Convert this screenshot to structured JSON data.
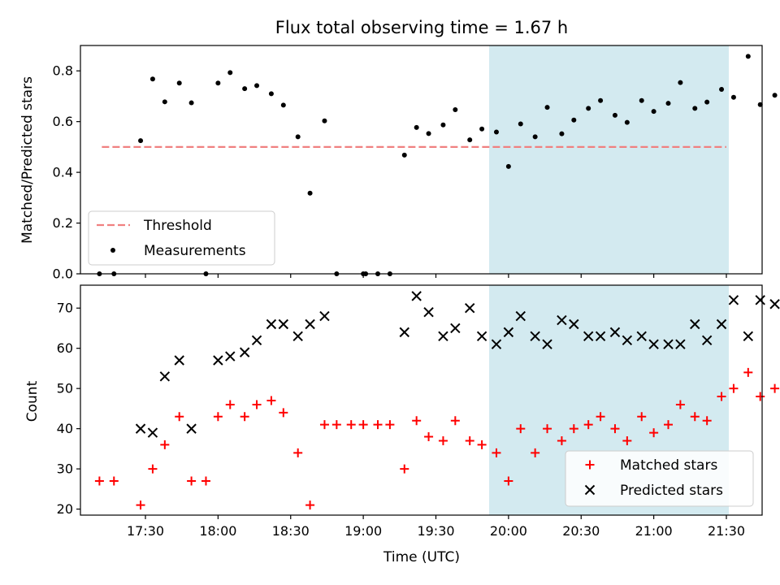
{
  "chart_data": [
    {
      "type": "scatter",
      "title": "Flux total observing time = 1.67 h",
      "ylabel": "Matched/Predicted stars",
      "ylim": [
        0,
        0.9
      ],
      "yticks": [
        "0.0",
        "0.2",
        "0.4",
        "0.6",
        "0.8"
      ],
      "grid": false,
      "legend_placement": "lower-left",
      "shaded_region": {
        "from": "19:52",
        "to": "21:31",
        "color": "#d3eaf0"
      },
      "threshold": {
        "name": "Threshold",
        "value": 0.5,
        "x_from": "17:12",
        "x_to": "21:30",
        "color": "#f08080"
      },
      "series": [
        {
          "name": "Measurements",
          "color": "#000000",
          "marker": "dot",
          "points": [
            [
              "17:11",
              0.0
            ],
            [
              "17:17",
              0.0
            ],
            [
              "17:28",
              0.525
            ],
            [
              "17:33",
              0.768
            ],
            [
              "17:38",
              0.678
            ],
            [
              "17:44",
              0.752
            ],
            [
              "17:49",
              0.674
            ],
            [
              "17:55",
              0.0
            ],
            [
              "18:00",
              0.752
            ],
            [
              "18:05",
              0.793
            ],
            [
              "18:11",
              0.73
            ],
            [
              "18:16",
              0.742
            ],
            [
              "18:22",
              0.71
            ],
            [
              "18:27",
              0.665
            ],
            [
              "18:33",
              0.54
            ],
            [
              "18:38",
              0.318
            ],
            [
              "18:44",
              0.603
            ],
            [
              "18:49",
              0.0
            ],
            [
              "19:00",
              0.0
            ],
            [
              "19:01",
              0.0
            ],
            [
              "19:06",
              0.0
            ],
            [
              "19:11",
              0.0
            ],
            [
              "19:17",
              0.468
            ],
            [
              "19:22",
              0.577
            ],
            [
              "19:27",
              0.553
            ],
            [
              "19:33",
              0.587
            ],
            [
              "19:38",
              0.647
            ],
            [
              "19:44",
              0.528
            ],
            [
              "19:49",
              0.571
            ],
            [
              "19:55",
              0.559
            ],
            [
              "20:00",
              0.423
            ],
            [
              "20:05",
              0.591
            ],
            [
              "20:11",
              0.54
            ],
            [
              "20:16",
              0.656
            ],
            [
              "20:22",
              0.552
            ],
            [
              "20:27",
              0.606
            ],
            [
              "20:33",
              0.652
            ],
            [
              "20:38",
              0.683
            ],
            [
              "20:44",
              0.625
            ],
            [
              "20:49",
              0.597
            ],
            [
              "20:55",
              0.683
            ],
            [
              "21:00",
              0.64
            ],
            [
              "21:06",
              0.672
            ],
            [
              "21:11",
              0.754
            ],
            [
              "21:17",
              0.652
            ],
            [
              "21:22",
              0.677
            ],
            [
              "21:28",
              0.727
            ],
            [
              "21:33",
              0.696
            ],
            [
              "21:39",
              0.857
            ],
            [
              "21:44",
              0.667
            ],
            [
              "21:50",
              0.704
            ],
            [
              "21:55",
              0.714
            ]
          ]
        }
      ]
    },
    {
      "type": "scatter",
      "xlabel": "Time (UTC)",
      "ylabel": "Count",
      "ylim": [
        18.5,
        75.7
      ],
      "yticks": [
        "20",
        "30",
        "40",
        "50",
        "60",
        "70"
      ],
      "xticks": [
        "17:30",
        "18:00",
        "18:30",
        "19:00",
        "19:30",
        "20:00",
        "20:30",
        "21:00",
        "21:30"
      ],
      "grid": false,
      "legend_placement": "lower-right",
      "shaded_region": {
        "from": "19:52",
        "to": "21:31",
        "color": "#d3eaf0"
      },
      "series": [
        {
          "name": "Matched stars",
          "color": "#ff0000",
          "marker": "plus",
          "points": [
            [
              "17:11",
              27
            ],
            [
              "17:17",
              27
            ],
            [
              "17:28",
              21
            ],
            [
              "17:33",
              30
            ],
            [
              "17:38",
              36
            ],
            [
              "17:44",
              43
            ],
            [
              "17:49",
              27
            ],
            [
              "17:55",
              27
            ],
            [
              "18:00",
              43
            ],
            [
              "18:05",
              46
            ],
            [
              "18:11",
              43
            ],
            [
              "18:16",
              46
            ],
            [
              "18:22",
              47
            ],
            [
              "18:27",
              44
            ],
            [
              "18:33",
              34
            ],
            [
              "18:38",
              21
            ],
            [
              "18:44",
              41
            ],
            [
              "18:49",
              41
            ],
            [
              "18:55",
              41
            ],
            [
              "19:00",
              41
            ],
            [
              "19:06",
              41
            ],
            [
              "19:11",
              41
            ],
            [
              "19:17",
              30
            ],
            [
              "19:22",
              42
            ],
            [
              "19:27",
              38
            ],
            [
              "19:33",
              37
            ],
            [
              "19:38",
              42
            ],
            [
              "19:44",
              37
            ],
            [
              "19:49",
              36
            ],
            [
              "19:55",
              34
            ],
            [
              "20:00",
              27
            ],
            [
              "20:05",
              40
            ],
            [
              "20:11",
              34
            ],
            [
              "20:16",
              40
            ],
            [
              "20:22",
              37
            ],
            [
              "20:27",
              40
            ],
            [
              "20:33",
              41
            ],
            [
              "20:38",
              43
            ],
            [
              "20:44",
              40
            ],
            [
              "20:49",
              37
            ],
            [
              "20:55",
              43
            ],
            [
              "21:00",
              39
            ],
            [
              "21:06",
              41
            ],
            [
              "21:11",
              46
            ],
            [
              "21:17",
              43
            ],
            [
              "21:22",
              42
            ],
            [
              "21:28",
              48
            ],
            [
              "21:33",
              50
            ],
            [
              "21:39",
              54
            ],
            [
              "21:44",
              48
            ],
            [
              "21:50",
              50
            ],
            [
              "21:55",
              50
            ]
          ]
        },
        {
          "name": "Predicted stars",
          "color": "#000000",
          "marker": "x",
          "points": [
            [
              "17:28",
              40
            ],
            [
              "17:33",
              39
            ],
            [
              "17:38",
              53
            ],
            [
              "17:44",
              57
            ],
            [
              "17:49",
              40
            ],
            [
              "18:00",
              57
            ],
            [
              "18:05",
              58
            ],
            [
              "18:11",
              59
            ],
            [
              "18:16",
              62
            ],
            [
              "18:22",
              66
            ],
            [
              "18:27",
              66
            ],
            [
              "18:33",
              63
            ],
            [
              "18:38",
              66
            ],
            [
              "18:44",
              68
            ],
            [
              "19:17",
              64
            ],
            [
              "19:22",
              73
            ],
            [
              "19:27",
              69
            ],
            [
              "19:33",
              63
            ],
            [
              "19:38",
              65
            ],
            [
              "19:44",
              70
            ],
            [
              "19:49",
              63
            ],
            [
              "19:55",
              61
            ],
            [
              "20:00",
              64
            ],
            [
              "20:05",
              68
            ],
            [
              "20:11",
              63
            ],
            [
              "20:16",
              61
            ],
            [
              "20:22",
              67
            ],
            [
              "20:27",
              66
            ],
            [
              "20:33",
              63
            ],
            [
              "20:38",
              63
            ],
            [
              "20:44",
              64
            ],
            [
              "20:49",
              62
            ],
            [
              "20:55",
              63
            ],
            [
              "21:00",
              61
            ],
            [
              "21:06",
              61
            ],
            [
              "21:11",
              61
            ],
            [
              "21:17",
              66
            ],
            [
              "21:22",
              62
            ],
            [
              "21:28",
              66
            ],
            [
              "21:33",
              72
            ],
            [
              "21:39",
              63
            ],
            [
              "21:44",
              72
            ],
            [
              "21:50",
              71
            ],
            [
              "21:55",
              70
            ]
          ]
        }
      ]
    }
  ]
}
